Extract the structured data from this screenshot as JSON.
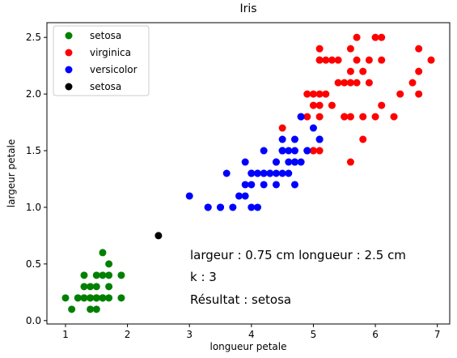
{
  "chart_data": {
    "type": "scatter",
    "title": "Iris",
    "xlabel": "longueur petale",
    "ylabel": "largeur petale",
    "xlim": [
      0.7,
      7.2
    ],
    "ylim": [
      -0.03,
      2.63
    ],
    "xticks": [
      1,
      2,
      3,
      4,
      5,
      6,
      7
    ],
    "yticks": [
      0.0,
      0.5,
      1.0,
      1.5,
      2.0,
      2.5
    ],
    "grid": false,
    "legend_position": "top-left",
    "series": [
      {
        "name": "setosa",
        "color": "#008000",
        "x": [
          1.0,
          1.1,
          1.2,
          1.2,
          1.3,
          1.3,
          1.3,
          1.3,
          1.4,
          1.4,
          1.4,
          1.4,
          1.5,
          1.5,
          1.5,
          1.5,
          1.5,
          1.5,
          1.6,
          1.6,
          1.6,
          1.6,
          1.6,
          1.7,
          1.7,
          1.7,
          1.7,
          1.9,
          1.9
        ],
        "y": [
          0.2,
          0.1,
          0.2,
          0.2,
          0.2,
          0.3,
          0.4,
          0.2,
          0.2,
          0.3,
          0.1,
          0.2,
          0.2,
          0.4,
          0.1,
          0.2,
          0.3,
          0.2,
          0.2,
          0.4,
          0.6,
          0.2,
          0.2,
          0.2,
          0.3,
          0.4,
          0.5,
          0.2,
          0.4
        ]
      },
      {
        "name": "virginica",
        "color": "#ff0000",
        "x": [
          4.5,
          4.8,
          4.9,
          4.9,
          5.0,
          5.0,
          5.0,
          5.0,
          5.1,
          5.1,
          5.1,
          5.1,
          5.1,
          5.1,
          5.1,
          5.2,
          5.2,
          5.3,
          5.3,
          5.4,
          5.4,
          5.5,
          5.5,
          5.5,
          5.6,
          5.6,
          5.6,
          5.6,
          5.6,
          5.7,
          5.7,
          5.7,
          5.8,
          5.8,
          5.8,
          5.9,
          5.9,
          6.0,
          6.0,
          6.1,
          6.1,
          6.1,
          6.3,
          6.4,
          6.6,
          6.7,
          6.7,
          6.7,
          6.9
        ],
        "y": [
          1.7,
          1.8,
          1.8,
          2.0,
          1.5,
          2.0,
          1.9,
          1.5,
          2.4,
          2.3,
          2.0,
          1.8,
          1.9,
          1.5,
          2.3,
          2.3,
          2.0,
          2.3,
          1.9,
          2.1,
          2.3,
          1.8,
          2.1,
          1.8,
          2.4,
          2.1,
          1.8,
          2.2,
          1.4,
          2.5,
          2.1,
          2.3,
          2.2,
          1.8,
          1.6,
          2.3,
          2.1,
          2.5,
          1.8,
          2.5,
          2.3,
          1.9,
          1.8,
          2.0,
          2.1,
          2.2,
          2.0,
          2.4,
          2.3
        ]
      },
      {
        "name": "versicolor",
        "color": "#0000ff",
        "x": [
          3.0,
          3.3,
          3.3,
          3.5,
          3.5,
          3.6,
          3.7,
          3.8,
          3.9,
          3.9,
          3.9,
          4.0,
          4.0,
          4.0,
          4.0,
          4.0,
          4.1,
          4.1,
          4.1,
          4.2,
          4.2,
          4.2,
          4.2,
          4.3,
          4.3,
          4.4,
          4.4,
          4.4,
          4.4,
          4.5,
          4.5,
          4.5,
          4.5,
          4.5,
          4.6,
          4.6,
          4.6,
          4.7,
          4.7,
          4.7,
          4.7,
          4.7,
          4.8,
          4.8,
          4.9,
          4.9,
          5.0,
          5.1,
          5.1
        ],
        "y": [
          1.1,
          1.0,
          1.0,
          1.0,
          1.0,
          1.3,
          1.0,
          1.1,
          1.1,
          1.2,
          1.4,
          1.0,
          1.2,
          1.3,
          1.3,
          1.3,
          1.0,
          1.3,
          1.3,
          1.2,
          1.3,
          1.3,
          1.5,
          1.3,
          1.3,
          1.2,
          1.3,
          1.4,
          1.4,
          1.3,
          1.5,
          1.5,
          1.5,
          1.6,
          1.3,
          1.4,
          1.5,
          1.2,
          1.4,
          1.4,
          1.5,
          1.6,
          1.4,
          1.8,
          1.5,
          1.5,
          1.7,
          1.6,
          1.6
        ]
      },
      {
        "name": "setosa",
        "color": "#000000",
        "x": [
          2.5
        ],
        "y": [
          0.75
        ]
      }
    ],
    "annotations": [
      "largeur : 0.75 cm longueur : 2.5 cm",
      "k : 3",
      "Résultat : setosa"
    ]
  }
}
